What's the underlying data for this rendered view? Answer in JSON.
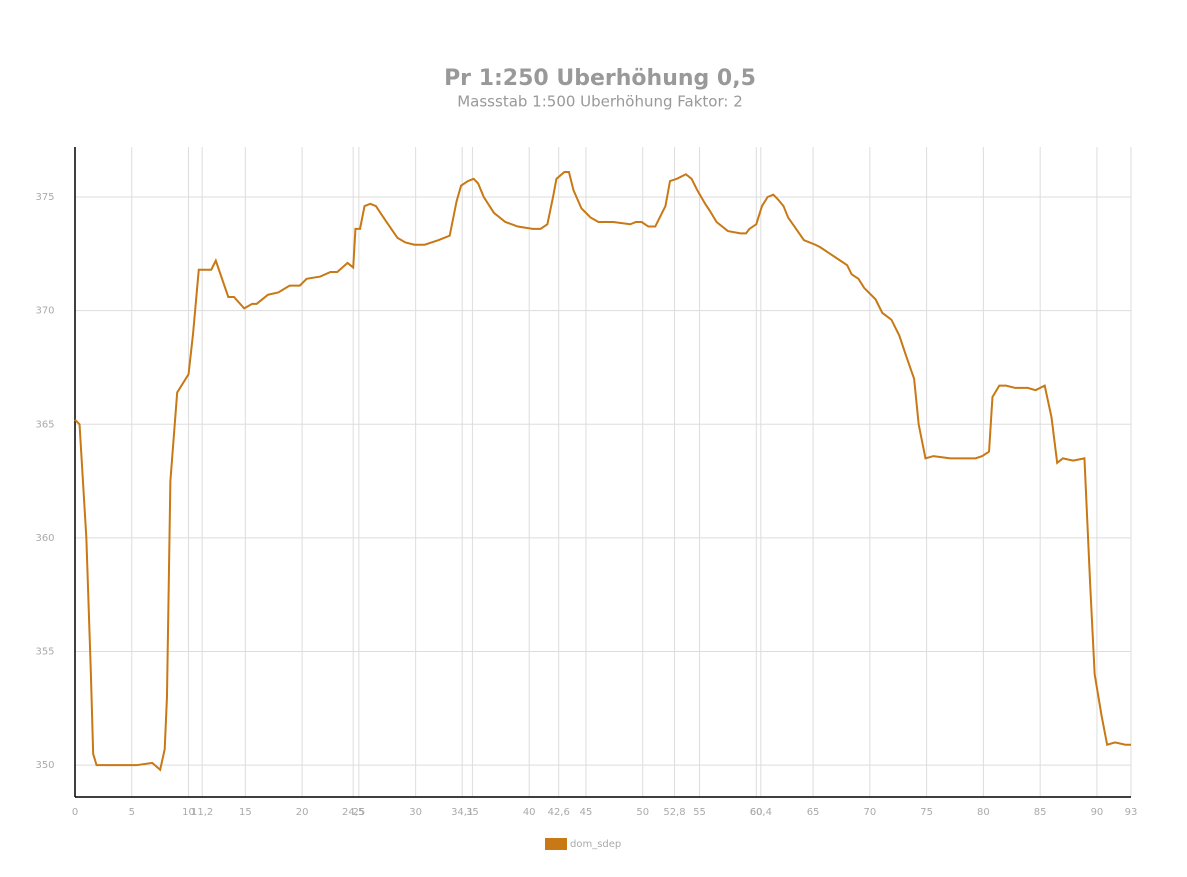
{
  "chart_data": {
    "type": "line",
    "title": "Pr 1:250 Uberhöhung 0,5",
    "subtitle": "Massstab 1:500  Uberhöhung Faktor: 2",
    "x": [
      0,
      0.4,
      1.0,
      1.4,
      1.6,
      1.9,
      3,
      4,
      5.4,
      6.8,
      7.5,
      7.9,
      8.1,
      8.4,
      9.0,
      10.0,
      10.4,
      10.9,
      12.0,
      12.4,
      13.5,
      14.0,
      14.9,
      15.6,
      16.0,
      17.0,
      17.9,
      18.9,
      19.8,
      20.4,
      21.6,
      22.5,
      23.1,
      24.0,
      24.5,
      24.7,
      25.1,
      25.5,
      26.0,
      26.5,
      27.3,
      28.4,
      29.1,
      29.9,
      30.8,
      32.0,
      33.0,
      33.6,
      34.0,
      34.6,
      35.1,
      35.5,
      36.0,
      36.9,
      37.9,
      39.0,
      40.3,
      41.0,
      41.6,
      42.1,
      42.4,
      43.1,
      43.5,
      43.9,
      44.6,
      45.4,
      46.1,
      47.4,
      48.9,
      49.4,
      49.9,
      50.5,
      51.1,
      52.0,
      52.4,
      53.0,
      53.8,
      54.3,
      54.8,
      55.5,
      55.9,
      56.5,
      57.5,
      58.6,
      59.1,
      59.4,
      60.0,
      60.5,
      61.0,
      61.5,
      61.9,
      62.4,
      62.8,
      63.5,
      64.2,
      65.2,
      65.6,
      66.5,
      67.4,
      68.0,
      68.4,
      69.0,
      69.5,
      70.5,
      71.1,
      71.9,
      72.6,
      73.2,
      73.9,
      74.3,
      74.9,
      75.6,
      77.1,
      78.4,
      79.3,
      79.9,
      80.5,
      80.8,
      81.4,
      82.0,
      82.8,
      83.9,
      84.6,
      85.4,
      86.0,
      86.5,
      87.0,
      87.9,
      88.9,
      89.4,
      89.8,
      90.4,
      90.9,
      91.6,
      92.5,
      93.0
    ],
    "series": [
      {
        "name": "dom_sdep",
        "color": "#c87814",
        "values": [
          365.2,
          365.0,
          360,
          354,
          350.5,
          350.0,
          350.0,
          350.0,
          350.0,
          350.1,
          349.8,
          350.7,
          353,
          362.5,
          366.4,
          367.2,
          369,
          371.8,
          371.8,
          372.2,
          370.6,
          370.6,
          370.1,
          370.3,
          370.3,
          370.7,
          370.8,
          371.1,
          371.1,
          371.4,
          371.5,
          371.7,
          371.7,
          372.1,
          371.9,
          373.6,
          373.6,
          374.6,
          374.7,
          374.6,
          374.0,
          373.2,
          373.0,
          372.9,
          372.9,
          373.1,
          373.3,
          374.8,
          375.5,
          375.7,
          375.8,
          375.6,
          375.0,
          374.3,
          373.9,
          373.7,
          373.6,
          373.6,
          373.8,
          375.0,
          375.8,
          376.1,
          376.1,
          375.3,
          374.5,
          374.1,
          373.9,
          373.9,
          373.8,
          373.9,
          373.9,
          373.7,
          373.7,
          374.6,
          375.7,
          375.8,
          376.0,
          375.8,
          375.3,
          374.7,
          374.4,
          373.9,
          373.5,
          373.4,
          373.4,
          373.6,
          373.8,
          374.6,
          375.0,
          375.1,
          374.9,
          374.6,
          374.1,
          373.6,
          373.1,
          372.9,
          372.8,
          372.5,
          372.2,
          372.0,
          371.6,
          371.4,
          371.0,
          370.5,
          369.9,
          369.6,
          368.9,
          368.0,
          367.0,
          365.0,
          363.5,
          363.6,
          363.5,
          363.5,
          363.5,
          363.6,
          363.8,
          366.2,
          366.7,
          366.7,
          366.6,
          366.6,
          366.5,
          366.7,
          365.3,
          363.3,
          363.5,
          363.4,
          363.5,
          358,
          354.0,
          352.2,
          350.9,
          351.0,
          350.9,
          350.9
        ]
      }
    ],
    "xlim": [
      0,
      93
    ],
    "ylim": [
      348.6,
      377.2
    ],
    "xticks": [
      0,
      5,
      10,
      {
        "value": 11.2,
        "label": "11,2"
      },
      15,
      20,
      {
        "value": 24.5,
        "label": "24,5"
      },
      25,
      30,
      {
        "value": 34.1,
        "label": "34,1"
      },
      35,
      40,
      {
        "value": 42.6,
        "label": "42,6"
      },
      45,
      50,
      {
        "value": 52.8,
        "label": "52,8"
      },
      55,
      60,
      {
        "value": 60.4,
        "label": "60,4"
      },
      65,
      70,
      75,
      80,
      85,
      90,
      93
    ],
    "yticks": [
      350,
      355,
      360,
      365,
      370,
      375
    ],
    "grid": true
  }
}
